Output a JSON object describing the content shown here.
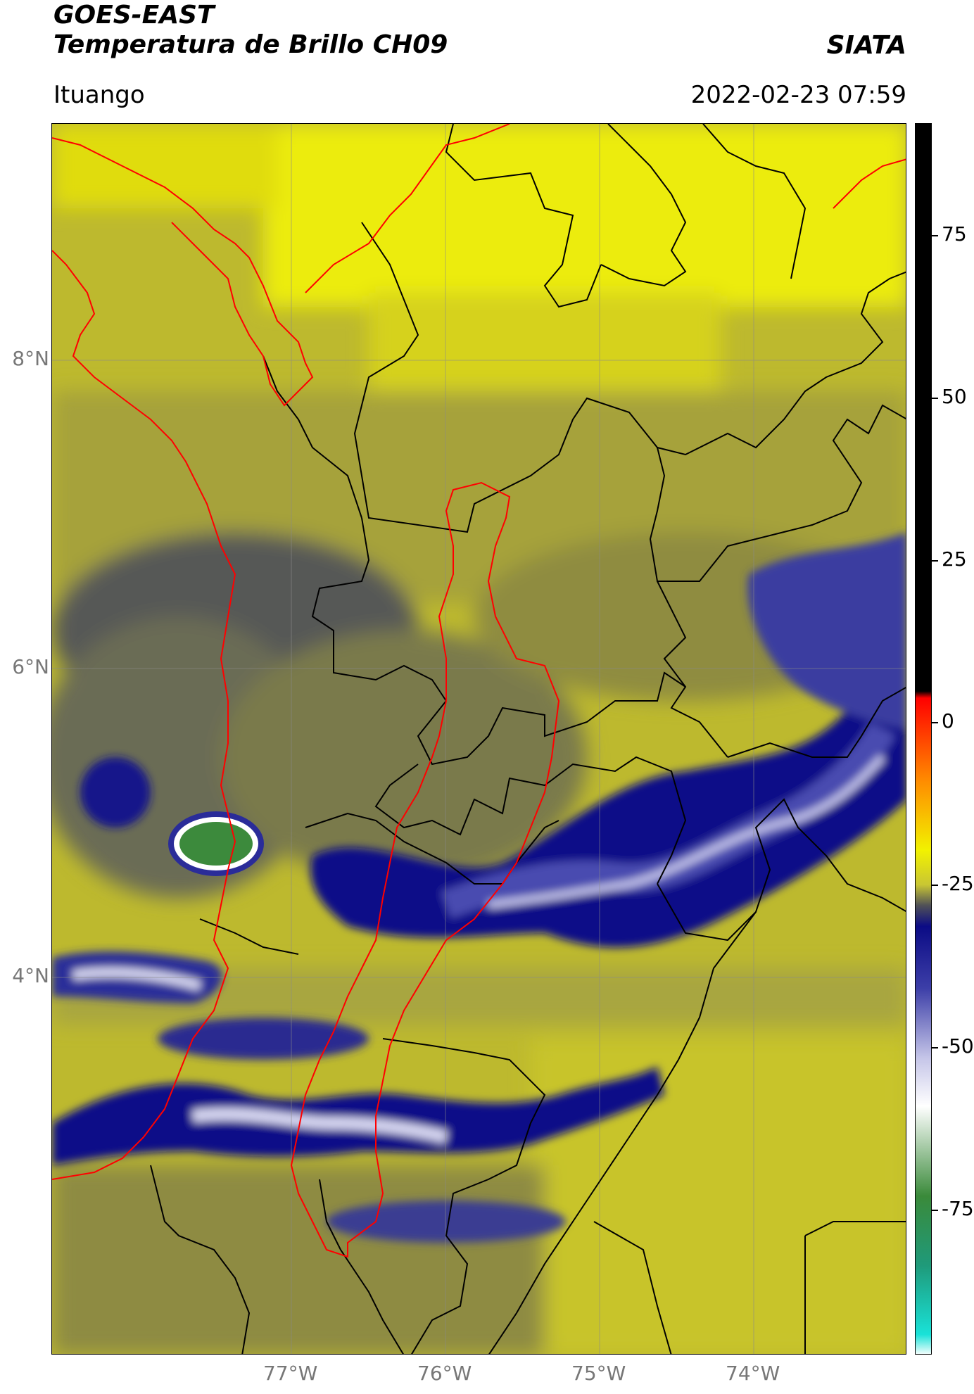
{
  "header": {
    "line1": "GOES-EAST",
    "line2": "Temperatura de Brillo CH09",
    "brand": "SIATA",
    "location": "Ituango",
    "timestamp": "2022-02-23 07:59"
  },
  "map": {
    "lat_labels": [
      "8°N",
      "6°N",
      "4°N"
    ],
    "lon_labels": [
      "77°W",
      "76°W",
      "75°W",
      "74°W"
    ],
    "border_colors": {
      "department": "#000000",
      "coast_and_basin": "#ff0000"
    }
  },
  "colorbar": {
    "ticks": [
      "75",
      "50",
      "25",
      "0",
      "-25",
      "-50",
      "-75"
    ],
    "stops": [
      {
        "value": 90,
        "color": "#000000"
      },
      {
        "value": 8,
        "color": "#000000"
      },
      {
        "value": 7,
        "color": "#ff0000"
      },
      {
        "value": -5,
        "color": "#ff8c00"
      },
      {
        "value": -15,
        "color": "#f2f200"
      },
      {
        "value": -20,
        "color": "#c9c633"
      },
      {
        "value": -23,
        "color": "#4f5057"
      },
      {
        "value": -26,
        "color": "#0b0b85"
      },
      {
        "value": -35,
        "color": "#3d3fa8"
      },
      {
        "value": -45,
        "color": "#c5c5e8"
      },
      {
        "value": -52,
        "color": "#ffffff"
      },
      {
        "value": -65,
        "color": "#3a8a3a"
      },
      {
        "value": -75,
        "color": "#1f9a7a"
      },
      {
        "value": -85,
        "color": "#19e2d8"
      },
      {
        "value": -88,
        "color": "#ffffff"
      }
    ]
  }
}
